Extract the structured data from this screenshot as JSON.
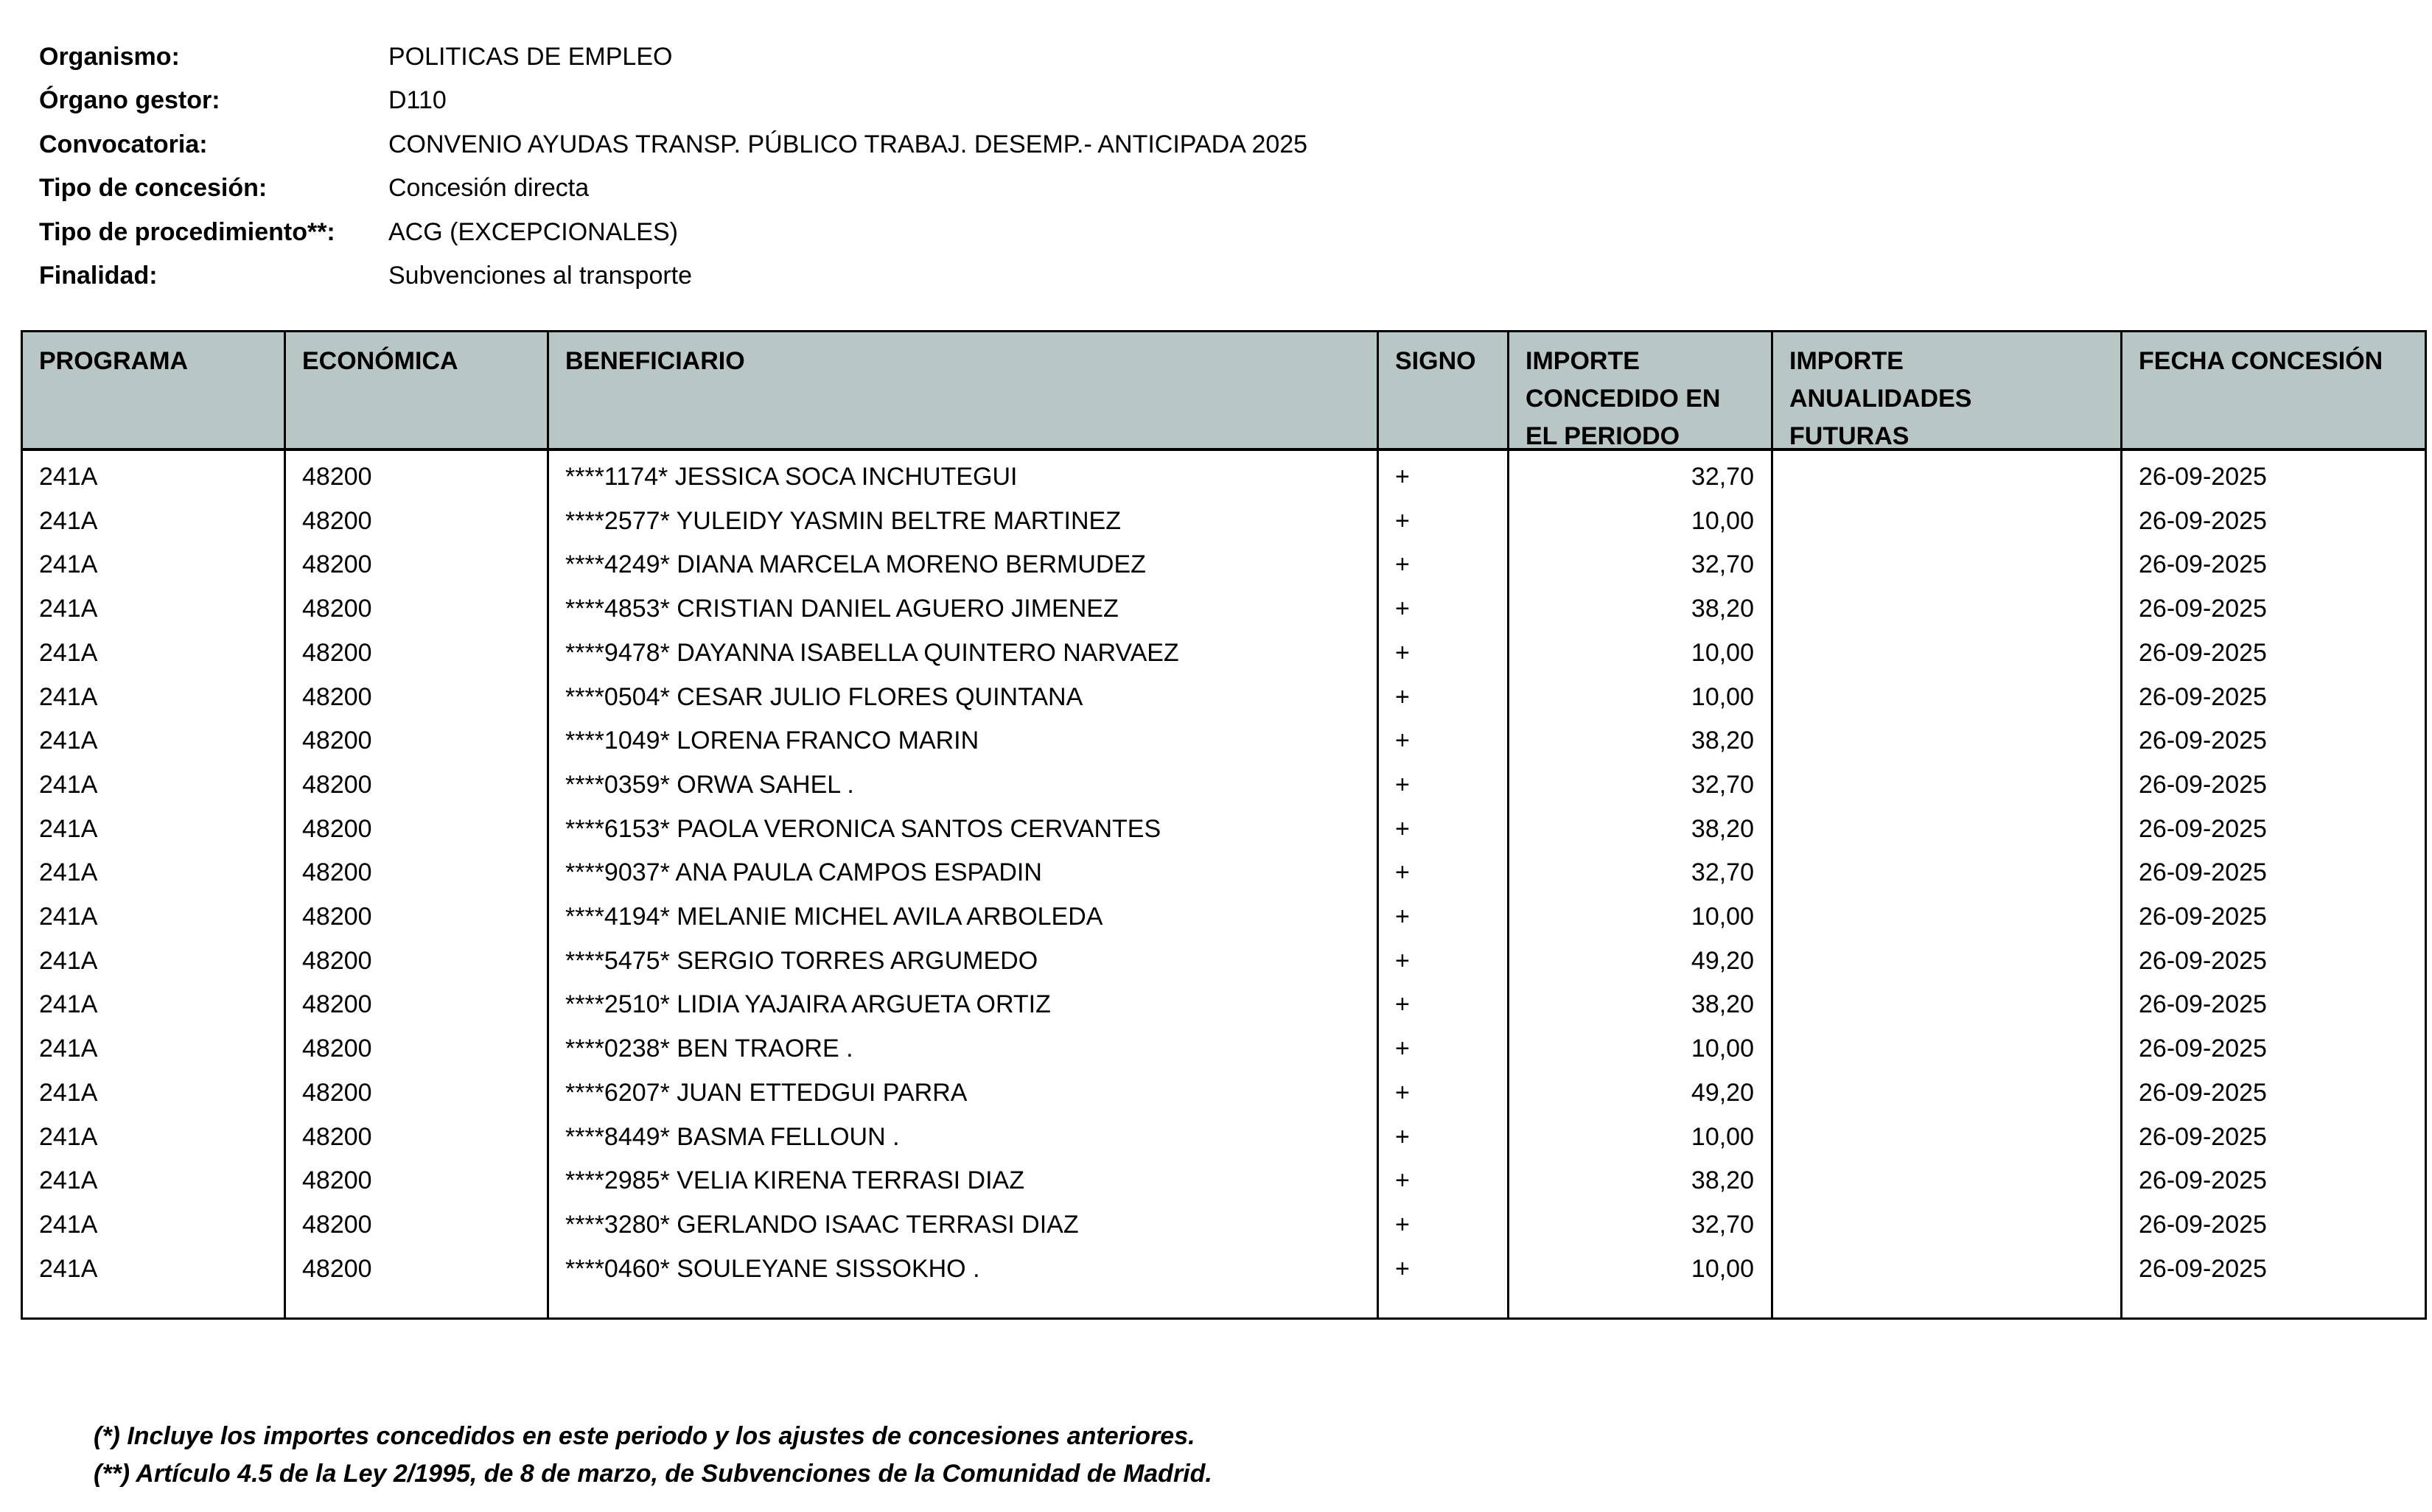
{
  "header_fields": [
    {
      "label": "Organismo:",
      "value": "POLITICAS DE EMPLEO"
    },
    {
      "label": "Órgano gestor:",
      "value": "D110"
    },
    {
      "label": "Convocatoria:",
      "value": "CONVENIO AYUDAS TRANSP. PÚBLICO TRABAJ. DESEMP.- ANTICIPADA 2025"
    },
    {
      "label": "Tipo de concesión:",
      "value": "Concesión directa"
    },
    {
      "label": "Tipo de procedimiento**:",
      "value": "ACG (EXCEPCIONALES)"
    },
    {
      "label": "Finalidad:",
      "value": "Subvenciones al transporte"
    }
  ],
  "table": {
    "header_bg": "#b9c6c6",
    "columns": [
      {
        "lines": [
          "PROGRAMA"
        ]
      },
      {
        "lines": [
          "ECONÓMICA"
        ]
      },
      {
        "lines": [
          "BENEFICIARIO"
        ]
      },
      {
        "lines": [
          "SIGNO"
        ]
      },
      {
        "lines": [
          "IMPORTE",
          "CONCEDIDO EN",
          "EL PERIODO"
        ]
      },
      {
        "lines": [
          "IMPORTE",
          "ANUALIDADES",
          "FUTURAS"
        ]
      },
      {
        "lines": [
          "FECHA CONCESIÓN"
        ]
      }
    ],
    "rows": [
      [
        "241A",
        "48200",
        "****1174* JESSICA SOCA INCHUTEGUI",
        "+",
        "32,70",
        "",
        "26-09-2025"
      ],
      [
        "241A",
        "48200",
        "****2577* YULEIDY YASMIN BELTRE MARTINEZ",
        "+",
        "10,00",
        "",
        "26-09-2025"
      ],
      [
        "241A",
        "48200",
        "****4249* DIANA MARCELA MORENO BERMUDEZ",
        "+",
        "32,70",
        "",
        "26-09-2025"
      ],
      [
        "241A",
        "48200",
        "****4853* CRISTIAN DANIEL AGUERO JIMENEZ",
        "+",
        "38,20",
        "",
        "26-09-2025"
      ],
      [
        "241A",
        "48200",
        "****9478* DAYANNA ISABELLA QUINTERO NARVAEZ",
        "+",
        "10,00",
        "",
        "26-09-2025"
      ],
      [
        "241A",
        "48200",
        "****0504* CESAR JULIO FLORES QUINTANA",
        "+",
        "10,00",
        "",
        "26-09-2025"
      ],
      [
        "241A",
        "48200",
        "****1049* LORENA FRANCO MARIN",
        "+",
        "38,20",
        "",
        "26-09-2025"
      ],
      [
        "241A",
        "48200",
        "****0359* ORWA SAHEL .",
        "+",
        "32,70",
        "",
        "26-09-2025"
      ],
      [
        "241A",
        "48200",
        "****6153* PAOLA VERONICA SANTOS CERVANTES",
        "+",
        "38,20",
        "",
        "26-09-2025"
      ],
      [
        "241A",
        "48200",
        "****9037* ANA PAULA CAMPOS ESPADIN",
        "+",
        "32,70",
        "",
        "26-09-2025"
      ],
      [
        "241A",
        "48200",
        "****4194* MELANIE MICHEL AVILA ARBOLEDA",
        "+",
        "10,00",
        "",
        "26-09-2025"
      ],
      [
        "241A",
        "48200",
        "****5475* SERGIO TORRES ARGUMEDO",
        "+",
        "49,20",
        "",
        "26-09-2025"
      ],
      [
        "241A",
        "48200",
        "****2510* LIDIA YAJAIRA ARGUETA ORTIZ",
        "+",
        "38,20",
        "",
        "26-09-2025"
      ],
      [
        "241A",
        "48200",
        "****0238* BEN TRAORE .",
        "+",
        "10,00",
        "",
        "26-09-2025"
      ],
      [
        "241A",
        "48200",
        "****6207* JUAN ETTEDGUI PARRA",
        "+",
        "49,20",
        "",
        "26-09-2025"
      ],
      [
        "241A",
        "48200",
        "****8449* BASMA FELLOUN .",
        "+",
        "10,00",
        "",
        "26-09-2025"
      ],
      [
        "241A",
        "48200",
        "****2985* VELIA KIRENA TERRASI DIAZ",
        "+",
        "38,20",
        "",
        "26-09-2025"
      ],
      [
        "241A",
        "48200",
        "****3280* GERLANDO ISAAC TERRASI DIAZ",
        "+",
        "32,70",
        "",
        "26-09-2025"
      ],
      [
        "241A",
        "48200",
        "****0460* SOULEYANE SISSOKHO .",
        "+",
        "10,00",
        "",
        "26-09-2025"
      ]
    ]
  },
  "footnotes": [
    "(*) Incluye los importes concedidos en este periodo y los ajustes de concesiones anteriores.",
    "(**) Artículo 4.5 de la Ley 2/1995, de 8 de marzo, de Subvenciones de la Comunidad de Madrid."
  ]
}
